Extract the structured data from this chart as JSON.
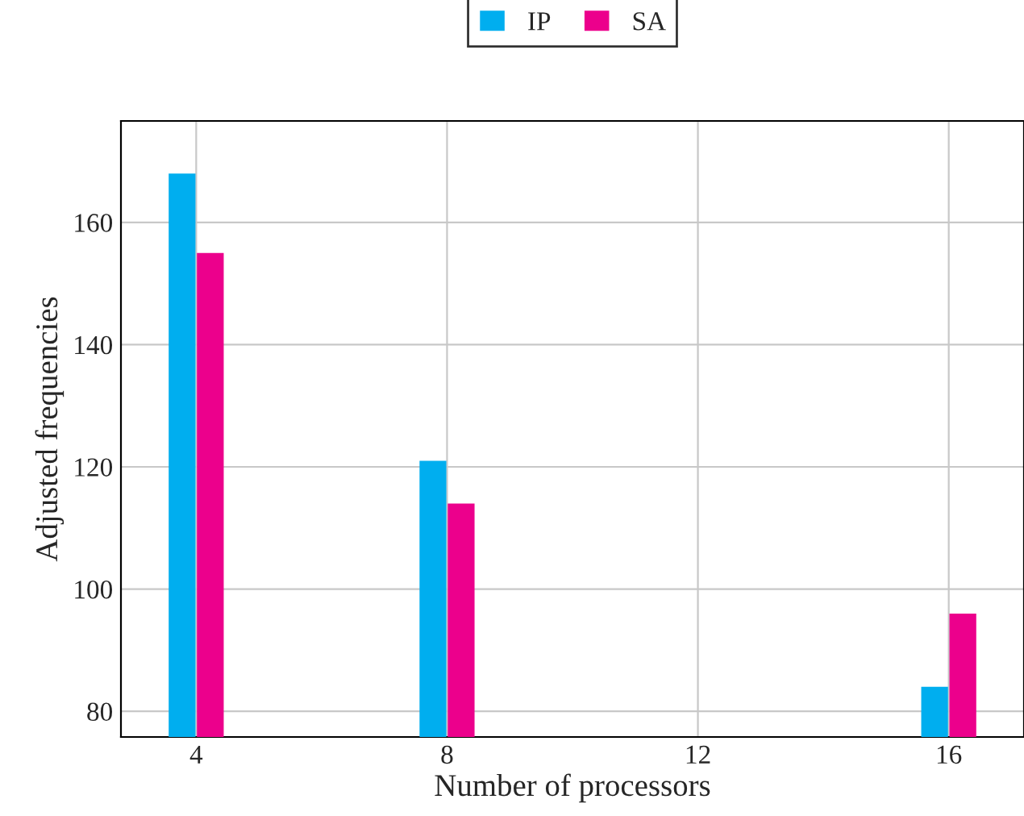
{
  "chart_data": {
    "type": "bar",
    "xlabel": "Number of processors",
    "ylabel": "Adjusted frequencies",
    "x": [
      4,
      8,
      16
    ],
    "series": [
      {
        "name": "IP",
        "color": "#00aeef",
        "values": [
          168,
          121,
          84
        ]
      },
      {
        "name": "SA",
        "color": "#ec008c",
        "values": [
          155,
          114,
          96
        ]
      }
    ],
    "xlim": [
      2.8,
      17.2
    ],
    "xticks": [
      4,
      8,
      12,
      16
    ],
    "ylim": [
      75.8,
      176.6
    ],
    "yticks": [
      80,
      100,
      120,
      140,
      160
    ],
    "grid": true,
    "legend": "top"
  }
}
